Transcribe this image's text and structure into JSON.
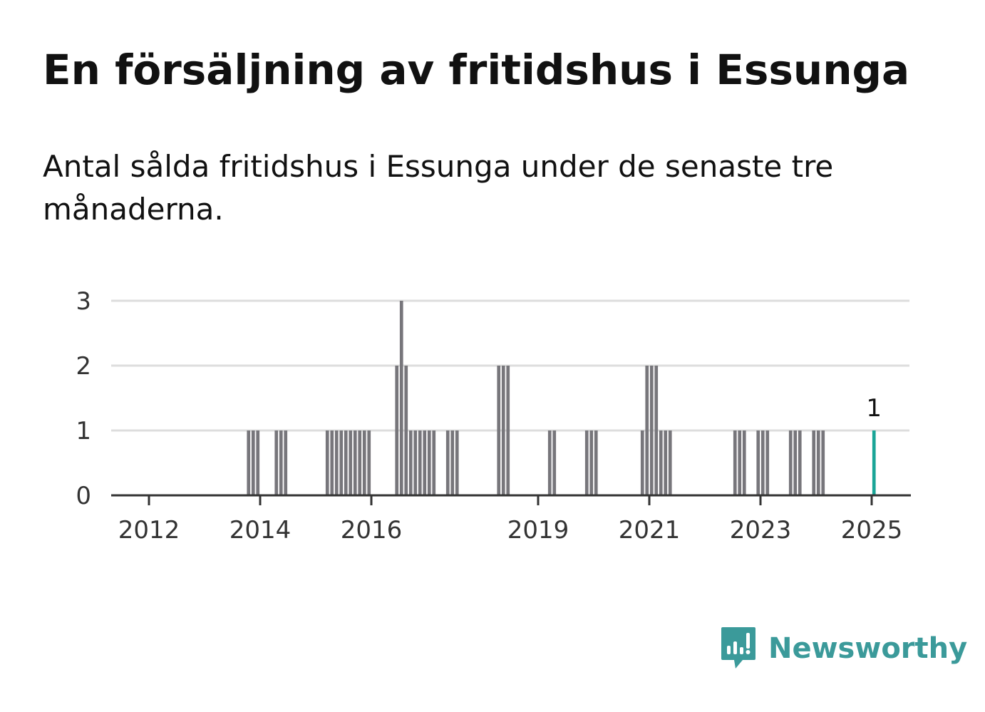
{
  "title": "En försäljning av fritidshus i Essunga",
  "subtitle": "Antal sålda fritidshus i Essunga under de senaste tre månaderna.",
  "brand": {
    "name": "Newsworthy",
    "icon": "newsworthy-logo-icon",
    "color": "#3b9a9a"
  },
  "chart_data": {
    "type": "bar",
    "x_unit": "month",
    "ylim": [
      0,
      3
    ],
    "y_ticks": [
      0,
      1,
      2,
      3
    ],
    "x_ticks": [
      "2012",
      "2014",
      "2016",
      "2019",
      "2021",
      "2023",
      "2025"
    ],
    "grid": true,
    "legend": "none",
    "bar_color": "#77767b",
    "highlight_color": "#1aa597",
    "highlight_label": "1",
    "series": [
      {
        "x": [
          "2013-10",
          "2013-11",
          "2013-12",
          "2014-04",
          "2014-05",
          "2014-06",
          "2015-03",
          "2015-04",
          "2015-05",
          "2015-06",
          "2015-07",
          "2015-08",
          "2015-09",
          "2015-10",
          "2015-11",
          "2015-12",
          "2016-06",
          "2016-07",
          "2016-08",
          "2016-09",
          "2016-10",
          "2016-11",
          "2016-12",
          "2017-01",
          "2017-02",
          "2017-05",
          "2017-06",
          "2017-07",
          "2018-04",
          "2018-05",
          "2018-06",
          "2019-03",
          "2019-04",
          "2019-11",
          "2019-12",
          "2020-01",
          "2020-11",
          "2020-12",
          "2021-01",
          "2021-02",
          "2021-03",
          "2021-04",
          "2021-05",
          "2022-07",
          "2022-08",
          "2022-09",
          "2022-12",
          "2023-01",
          "2023-02",
          "2023-07",
          "2023-08",
          "2023-09",
          "2023-12",
          "2024-01",
          "2024-02",
          "2025-01"
        ],
        "values": [
          1,
          1,
          1,
          1,
          1,
          1,
          1,
          1,
          1,
          1,
          1,
          1,
          1,
          1,
          1,
          1,
          2,
          3,
          2,
          1,
          1,
          1,
          1,
          1,
          1,
          1,
          1,
          1,
          2,
          2,
          2,
          1,
          1,
          1,
          1,
          1,
          1,
          2,
          2,
          2,
          1,
          1,
          1,
          1,
          1,
          1,
          1,
          1,
          1,
          1,
          1,
          1,
          1,
          1,
          1,
          1
        ]
      }
    ]
  }
}
